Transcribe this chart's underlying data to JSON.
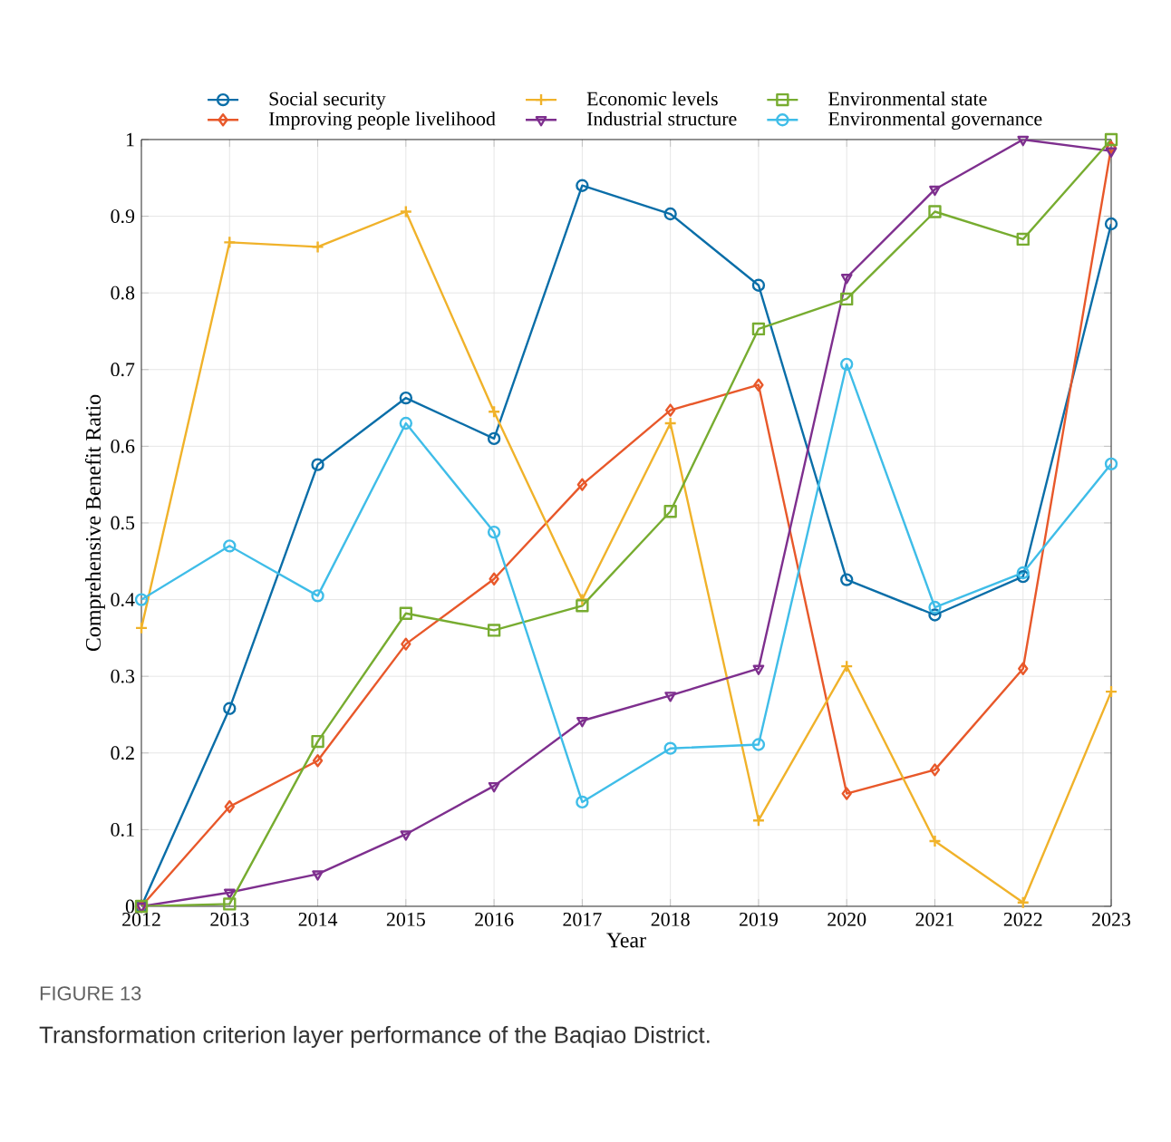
{
  "chart_data": {
    "type": "line",
    "xlabel": "Year",
    "ylabel": "Comprehensive Benefit Ratio",
    "x": [
      2012,
      2013,
      2014,
      2015,
      2016,
      2017,
      2018,
      2019,
      2020,
      2021,
      2022,
      2023
    ],
    "xlim": [
      2012,
      2023
    ],
    "xticks": [
      2012,
      2013,
      2014,
      2015,
      2016,
      2017,
      2018,
      2019,
      2020,
      2021,
      2022,
      2023
    ],
    "ylim": [
      0,
      1
    ],
    "yticks": [
      0,
      0.1,
      0.2,
      0.3,
      0.4,
      0.5,
      0.6,
      0.7,
      0.8,
      0.9,
      1
    ],
    "grid": true,
    "legend": "top",
    "line_style": "solid",
    "series": [
      {
        "name": "Social security",
        "color": "#0a6ea8",
        "marker": "circle",
        "values": [
          0,
          0.258,
          0.576,
          0.663,
          0.61,
          0.94,
          0.903,
          0.81,
          0.426,
          0.38,
          0.43,
          0.89
        ]
      },
      {
        "name": "Improving people livelihood",
        "color": "#e8582a",
        "marker": "diamond",
        "values": [
          0,
          0.13,
          0.19,
          0.342,
          0.427,
          0.55,
          0.647,
          0.68,
          0.147,
          0.178,
          0.31,
          0.99
        ]
      },
      {
        "name": "Economic levels",
        "color": "#f0b22a",
        "marker": "cross",
        "values": [
          0.363,
          0.866,
          0.86,
          0.906,
          0.645,
          0.4,
          0.63,
          0.112,
          0.313,
          0.085,
          0.005,
          0.28
        ]
      },
      {
        "name": "Industrial structure",
        "color": "#7e2f8e",
        "marker": "triangle",
        "values": [
          0,
          0.018,
          0.042,
          0.094,
          0.157,
          0.242,
          0.275,
          0.31,
          0.82,
          0.935,
          1.0,
          0.985
        ]
      },
      {
        "name": "Environmental state",
        "color": "#77ac30",
        "marker": "square",
        "values": [
          0,
          0.003,
          0.215,
          0.382,
          0.36,
          0.392,
          0.515,
          0.753,
          0.792,
          0.906,
          0.87,
          1.0
        ]
      },
      {
        "name": "Environmental governance",
        "color": "#3fbde8",
        "marker": "circle",
        "values": [
          0.4,
          0.47,
          0.405,
          0.63,
          0.488,
          0.136,
          0.206,
          0.211,
          0.707,
          0.39,
          0.435,
          0.577
        ]
      }
    ],
    "annotations": [
      "FIGURE 13",
      "Transformation criterion layer performance of the Baqiao District."
    ]
  }
}
